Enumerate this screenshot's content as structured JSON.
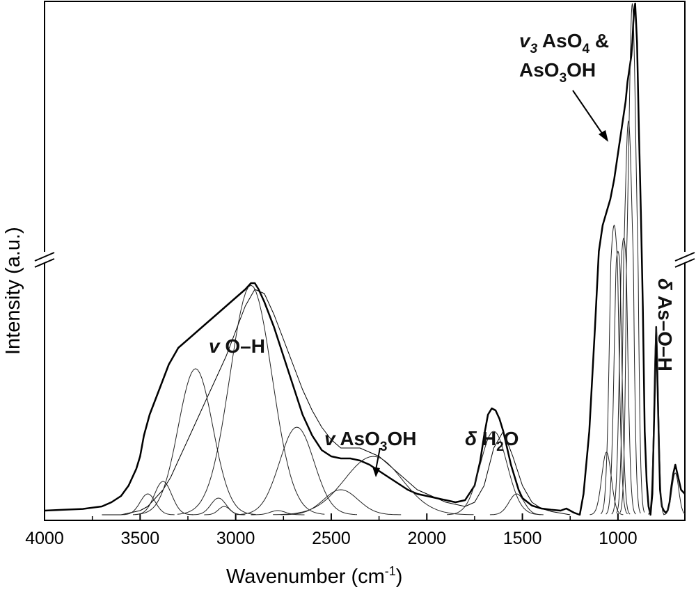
{
  "chart_data": {
    "type": "line",
    "xlabel": "Wavenumber (cm",
    "xlabel_sup": "-1",
    "xlabel_close": ")",
    "ylabel": "Intensity (a.u.)",
    "xlim": [
      4000,
      650
    ],
    "x_reversed": true,
    "y_axis_break": true,
    "y_ticks_shown": false,
    "x_ticks": [
      4000,
      3500,
      3000,
      2500,
      2000,
      1500,
      1000
    ],
    "x_tick_labels": [
      "4000",
      "3500",
      "3000",
      "2500",
      "2000",
      "1500",
      "1000"
    ],
    "series": [
      {
        "role": "measured",
        "x": [
          4000,
          3900,
          3800,
          3700,
          3650,
          3600,
          3560,
          3520,
          3500,
          3480,
          3450,
          3400,
          3350,
          3300,
          3250,
          3200,
          3150,
          3100,
          3050,
          3000,
          2950,
          2920,
          2900,
          2880,
          2850,
          2800,
          2750,
          2700,
          2650,
          2600,
          2550,
          2500,
          2450,
          2400,
          2350,
          2300,
          2250,
          2200,
          2150,
          2100,
          2050,
          2000,
          1950,
          1900,
          1850,
          1800,
          1750,
          1720,
          1700,
          1680,
          1660,
          1640,
          1620,
          1600,
          1580,
          1560,
          1540,
          1520,
          1500,
          1450,
          1400,
          1350,
          1300,
          1270,
          1250,
          1230,
          1200,
          1180,
          1150,
          1120,
          1100,
          1080,
          1060,
          1040,
          1020,
          1000,
          980,
          960,
          950,
          940,
          930,
          925,
          920,
          915,
          910,
          900,
          890,
          880,
          870,
          860,
          850,
          840,
          830,
          820,
          810,
          800,
          790,
          780,
          770,
          760,
          750,
          740,
          730,
          720,
          710,
          700,
          690,
          680,
          670,
          660,
          650
        ],
        "y": [
          0.01,
          0.012,
          0.014,
          0.02,
          0.03,
          0.045,
          0.07,
          0.11,
          0.14,
          0.19,
          0.24,
          0.3,
          0.36,
          0.4,
          0.42,
          0.44,
          0.46,
          0.48,
          0.5,
          0.52,
          0.54,
          0.555,
          0.555,
          0.54,
          0.51,
          0.45,
          0.38,
          0.31,
          0.24,
          0.19,
          0.155,
          0.14,
          0.135,
          0.135,
          0.13,
          0.12,
          0.105,
          0.09,
          0.075,
          0.06,
          0.05,
          0.045,
          0.04,
          0.035,
          0.03,
          0.035,
          0.07,
          0.13,
          0.19,
          0.24,
          0.255,
          0.25,
          0.23,
          0.2,
          0.16,
          0.12,
          0.09,
          0.06,
          0.04,
          0.022,
          0.015,
          0.012,
          0.01,
          0.015,
          0.01,
          0.005,
          0.0,
          0.05,
          0.2,
          0.45,
          0.7,
          0.9,
          1.0,
          1.1,
          1.25,
          1.45,
          1.65,
          1.85,
          2.0,
          2.1,
          2.2,
          2.3,
          2.45,
          2.55,
          2.6,
          2.3,
          1.6,
          1.0,
          0.5,
          0.2,
          0.08,
          0.02,
          0.0,
          0.05,
          0.25,
          0.45,
          0.25,
          0.06,
          0.02,
          0.01,
          0.005,
          0.01,
          0.03,
          0.07,
          0.1,
          0.12,
          0.1,
          0.08,
          0.06,
          0.055,
          0.05
        ]
      },
      {
        "role": "fit-component",
        "x": [
          3700,
          3650,
          3600,
          3550,
          3500,
          3460,
          3420,
          3380,
          3340,
          3300,
          3250,
          3200,
          3150,
          3100,
          3050,
          3000,
          2950,
          2900,
          2850,
          2800,
          2750,
          2700,
          2650,
          2600,
          2550,
          2500,
          2450,
          2400,
          2350,
          2300,
          2250,
          2200,
          2150,
          2100,
          2050,
          2000,
          1950,
          1900,
          1850,
          1800,
          1750,
          1700,
          1650,
          1600,
          1550,
          1500,
          1450,
          1400,
          1350,
          1300,
          1250
        ],
        "y": [
          0.0,
          0.0,
          0.0,
          0.005,
          0.01,
          0.02,
          0.04,
          0.06,
          0.09,
          0.13,
          0.18,
          0.23,
          0.28,
          0.33,
          0.38,
          0.44,
          0.5,
          0.54,
          0.53,
          0.48,
          0.42,
          0.36,
          0.3,
          0.25,
          0.21,
          0.18,
          0.16,
          0.16,
          0.16,
          0.15,
          0.14,
          0.12,
          0.1,
          0.08,
          0.06,
          0.05,
          0.04,
          0.03,
          0.025,
          0.02,
          0.03,
          0.07,
          0.16,
          0.2,
          0.14,
          0.07,
          0.03,
          0.015,
          0.008,
          0.004,
          0.0
        ]
      }
    ],
    "annotations": [
      {
        "text": "v",
        "rest": " O–H"
      },
      {
        "text": "v",
        "rest": " AsO",
        "sub": "3",
        "tail": "OH"
      },
      {
        "text": "δ",
        "rest": " H",
        "sub": "2",
        "tail": "O"
      },
      {
        "text": "v",
        "sub0": "3",
        "rest": " AsO",
        "sub": "4",
        "tail": " &"
      },
      {
        "text": "AsO",
        "sub": "3",
        "tail": "OH"
      },
      {
        "text": "δ",
        "rest": " As–O–H"
      }
    ]
  }
}
